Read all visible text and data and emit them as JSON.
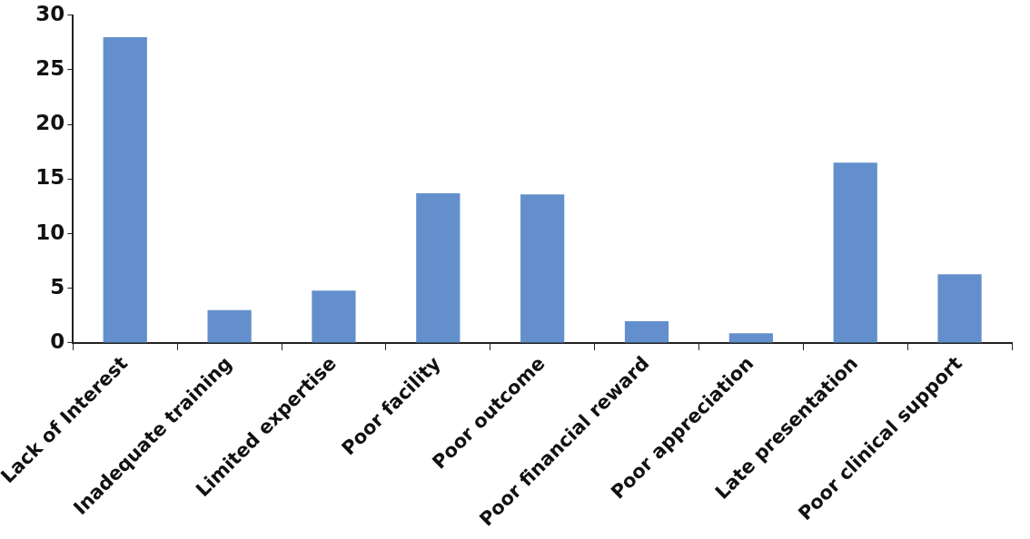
{
  "chart_data": {
    "type": "bar",
    "categories": [
      "Lack of Interest",
      "Inadequate training",
      "Limited expertise",
      "Poor facility",
      "Poor outcome",
      "Poor financial reward",
      "Poor appreciation",
      "Late presentation",
      "Poor clinical support"
    ],
    "values": [
      28,
      3,
      4.8,
      13.7,
      13.6,
      2,
      0.9,
      16.5,
      6.3
    ],
    "color": "#6390cc",
    "ylim": [
      0,
      30
    ],
    "yticks": [
      0,
      5,
      10,
      15,
      20,
      25,
      30
    ],
    "grid": false,
    "legend": false
  }
}
